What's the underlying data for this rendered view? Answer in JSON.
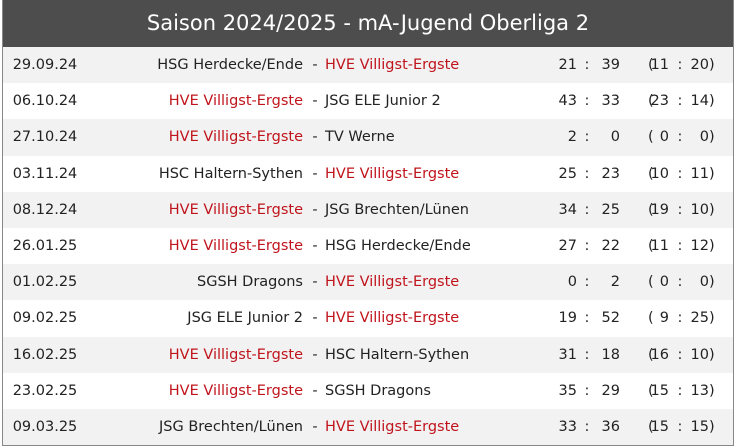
{
  "header": {
    "title": "Saison 2024/2025 - mA-Jugend Oberliga 2"
  },
  "highlight": "HVE Villigst-Ergste",
  "separators": {
    "teams": "-",
    "score": ":",
    "open": "(",
    "close": ")"
  },
  "table": {
    "rows": [
      [
        "29.09.24",
        "HSG Herdecke/Ende",
        "HVE Villigst-Ergste",
        21,
        39,
        11,
        20
      ],
      [
        "06.10.24",
        "HVE Villigst-Ergste",
        "JSG ELE Junior 2",
        43,
        33,
        23,
        14
      ],
      [
        "27.10.24",
        "HVE Villigst-Ergste",
        "TV Werne",
        2,
        0,
        0,
        0
      ],
      [
        "03.11.24",
        "HSC Haltern-Sythen",
        "HVE Villigst-Ergste",
        25,
        23,
        10,
        11
      ],
      [
        "08.12.24",
        "HVE Villigst-Ergste",
        "JSG Brechten/Lünen",
        34,
        25,
        19,
        10
      ],
      [
        "26.01.25",
        "HVE Villigst-Ergste",
        "HSG Herdecke/Ende",
        27,
        22,
        11,
        12
      ],
      [
        "01.02.25",
        "SGSH Dragons",
        "HVE Villigst-Ergste",
        0,
        2,
        0,
        0
      ],
      [
        "09.02.25",
        "JSG ELE Junior 2",
        "HVE Villigst-Ergste",
        19,
        52,
        9,
        25
      ],
      [
        "16.02.25",
        "HVE Villigst-Ergste",
        "HSC Haltern-Sythen",
        31,
        18,
        16,
        10
      ],
      [
        "23.02.25",
        "HVE Villigst-Ergste",
        "SGSH Dragons",
        35,
        29,
        15,
        13
      ],
      [
        "09.03.25",
        "JSG Brechten/Lünen",
        "HVE Villigst-Ergste",
        33,
        36,
        15,
        15
      ]
    ]
  }
}
